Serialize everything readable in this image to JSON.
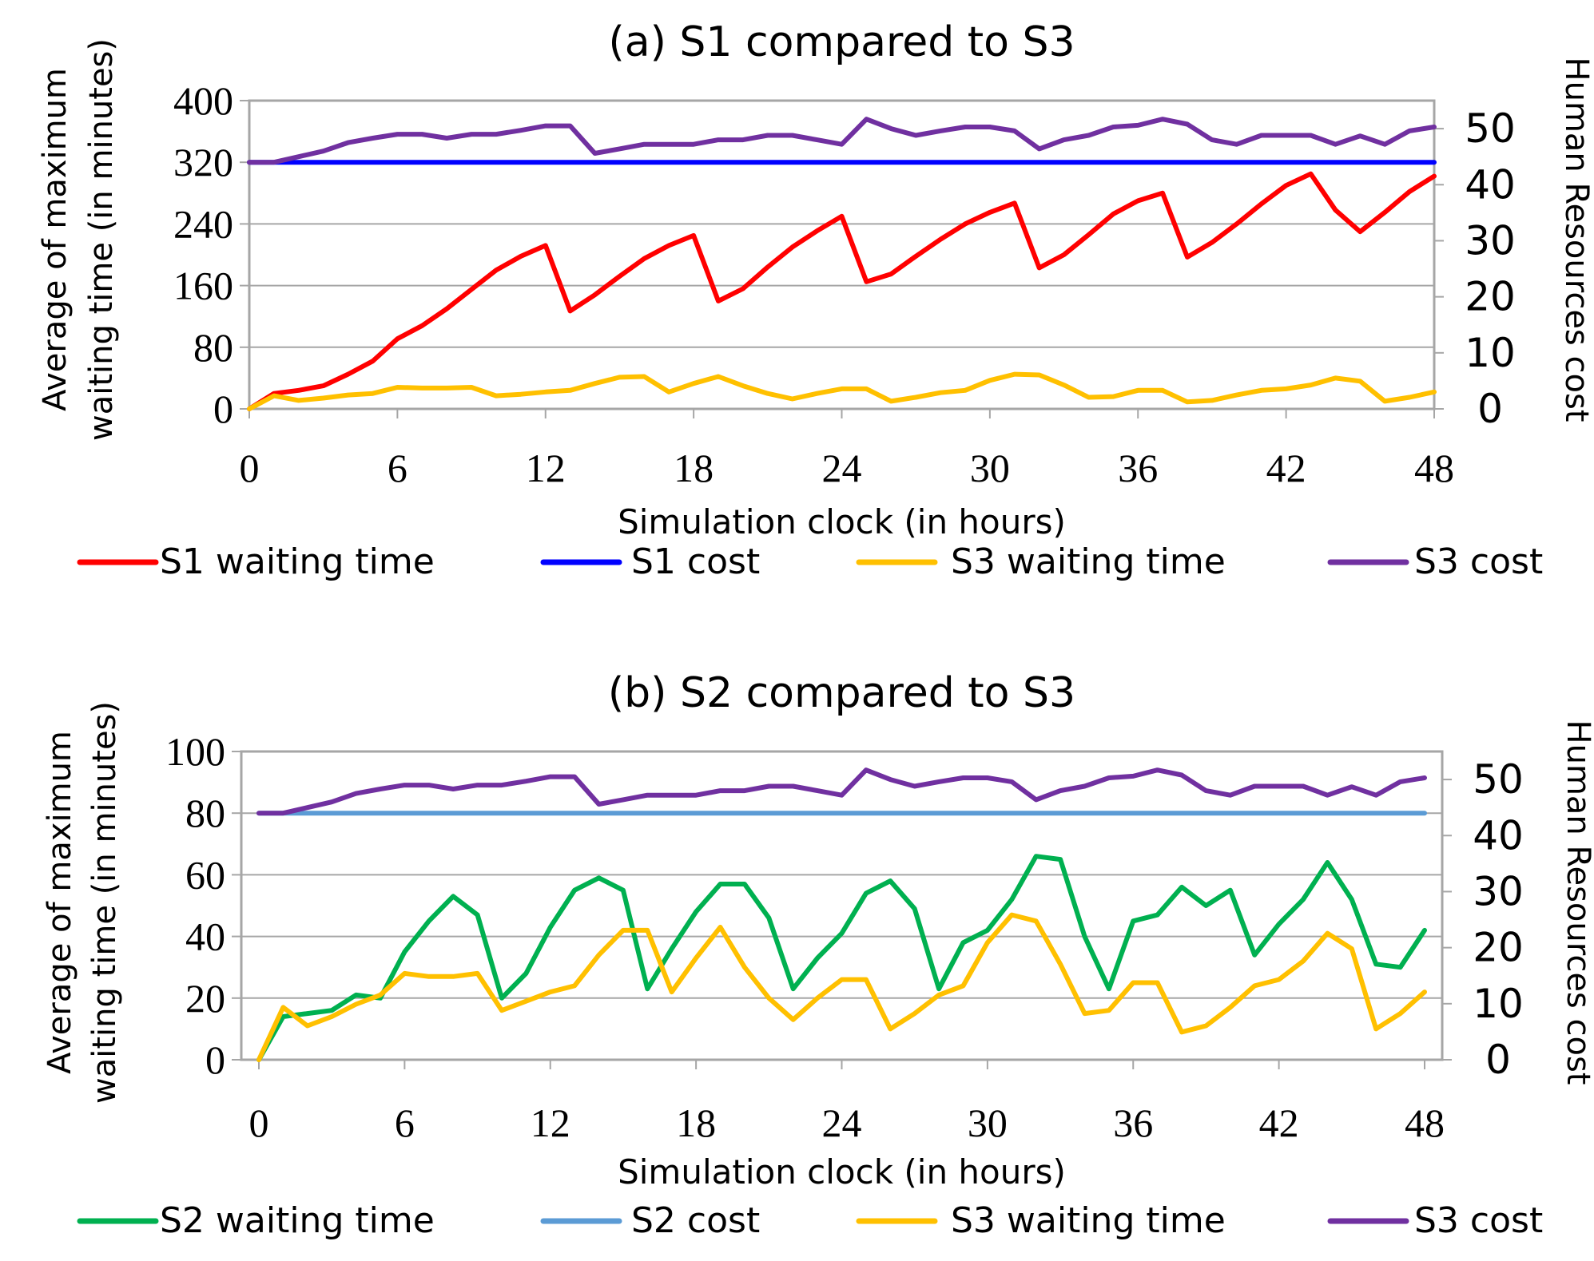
{
  "chart_data": [
    {
      "type": "line",
      "title": "(a) S1 compared to S3",
      "xlabel": "Simulation clock (in hours)",
      "ylabel_lines": [
        "Average of maximum",
        "waiting time (in minutes)"
      ],
      "y2label": "Human Resources cost",
      "xlim": [
        0,
        48
      ],
      "ylim": [
        0,
        400
      ],
      "y2lim": [
        0,
        55
      ],
      "x_ticks": [
        "0",
        "6",
        "12",
        "18",
        "24",
        "30",
        "36",
        "42",
        "48"
      ],
      "y_ticks": [
        "0",
        "80",
        "160",
        "240",
        "320",
        "400"
      ],
      "y2_ticks": [
        "0",
        "10",
        "20",
        "30",
        "40",
        "50"
      ],
      "x": [
        0,
        1,
        2,
        3,
        4,
        5,
        6,
        7,
        8,
        9,
        10,
        11,
        12,
        13,
        14,
        15,
        16,
        17,
        18,
        19,
        20,
        21,
        22,
        23,
        24,
        25,
        26,
        27,
        28,
        29,
        30,
        31,
        32,
        33,
        34,
        35,
        36,
        37,
        38,
        39,
        40,
        41,
        42,
        43,
        44,
        45,
        46,
        47,
        48
      ],
      "series": [
        {
          "name": "S1 waiting time",
          "axis": "left",
          "color": "#ff0000",
          "values": [
            0,
            20,
            24,
            30,
            45,
            62,
            91,
            108,
            130,
            155,
            180,
            198,
            212,
            127,
            148,
            172,
            195,
            212,
            225,
            140,
            156,
            184,
            210,
            231,
            250,
            165,
            175,
            198,
            220,
            240,
            255,
            267,
            183,
            200,
            226,
            253,
            270,
            280,
            197,
            216,
            240,
            266,
            290,
            305,
            258,
            230,
            255,
            282,
            302
          ]
        },
        {
          "name": "S1 cost",
          "axis": "right",
          "color": "#0000ff",
          "values": [
            44,
            44,
            44,
            44,
            44,
            44,
            44,
            44,
            44,
            44,
            44,
            44,
            44,
            44,
            44,
            44,
            44,
            44,
            44,
            44,
            44,
            44,
            44,
            44,
            44,
            44,
            44,
            44,
            44,
            44,
            44,
            44,
            44,
            44,
            44,
            44,
            44,
            44,
            44,
            44,
            44,
            44,
            44,
            44,
            44,
            44,
            44,
            44,
            44
          ]
        },
        {
          "name": "S3 waiting time",
          "axis": "left",
          "color": "#ffc000",
          "values": [
            0,
            17,
            11,
            14,
            18,
            20,
            28,
            27,
            27,
            28,
            17,
            19,
            22,
            24,
            33,
            41,
            42,
            22,
            33,
            42,
            30,
            20,
            13,
            20,
            26,
            26,
            10,
            15,
            21,
            24,
            37,
            45,
            44,
            31,
            15,
            16,
            24,
            24,
            9,
            11,
            18,
            24,
            26,
            31,
            40,
            36,
            10,
            15,
            22
          ]
        },
        {
          "name": "S3 cost",
          "axis": "right",
          "color": "#7030a0",
          "values": [
            44,
            44,
            45,
            46,
            47.5,
            48.3,
            49,
            49,
            48.3,
            49,
            49,
            49.7,
            50.5,
            50.5,
            45.6,
            46.4,
            47.2,
            47.2,
            47.2,
            48,
            48,
            48.8,
            48.8,
            48,
            47.2,
            51.7,
            50,
            48.8,
            49.6,
            50.3,
            50.3,
            49.6,
            46.4,
            48,
            48.8,
            50.3,
            50.6,
            51.7,
            50.8,
            48,
            47.2,
            48.8,
            48.8,
            48.8,
            47.2,
            48.7,
            47.2,
            49.6,
            50.3
          ]
        }
      ]
    },
    {
      "type": "line",
      "title": "(b) S2 compared to S3",
      "xlabel": "Simulation clock (in hours)",
      "ylabel_lines": [
        "Average of maximum",
        "waiting time (in minutes)"
      ],
      "y2label": "Human Resources cost",
      "xlim": [
        0,
        48
      ],
      "ylim": [
        0,
        100
      ],
      "y2lim": [
        0,
        55
      ],
      "x_ticks": [
        "0",
        "6",
        "12",
        "18",
        "24",
        "30",
        "36",
        "42",
        "48"
      ],
      "y_ticks": [
        "0",
        "20",
        "40",
        "60",
        "80",
        "100"
      ],
      "y2_ticks": [
        "0",
        "10",
        "20",
        "30",
        "40",
        "50"
      ],
      "x": [
        0,
        1,
        2,
        3,
        4,
        5,
        6,
        7,
        8,
        9,
        10,
        11,
        12,
        13,
        14,
        15,
        16,
        17,
        18,
        19,
        20,
        21,
        22,
        23,
        24,
        25,
        26,
        27,
        28,
        29,
        30,
        31,
        32,
        33,
        34,
        35,
        36,
        37,
        38,
        39,
        40,
        41,
        42,
        43,
        44,
        45,
        46,
        47,
        48
      ],
      "series": [
        {
          "name": "S2 waiting time",
          "axis": "left",
          "color": "#00b050",
          "values": [
            0,
            14,
            15,
            16,
            21,
            20,
            35,
            45,
            53,
            47,
            20,
            28,
            43,
            55,
            59,
            55,
            23,
            36,
            48,
            57,
            57,
            46,
            23,
            33,
            41,
            54,
            58,
            49,
            23,
            38,
            42,
            52,
            66,
            65,
            40,
            23,
            45,
            47,
            56,
            50,
            55,
            34,
            44,
            52,
            64,
            52,
            31,
            30,
            42
          ]
        },
        {
          "name": "S2 cost",
          "axis": "right",
          "color": "#5b9bd5",
          "values": [
            44,
            44,
            44,
            44,
            44,
            44,
            44,
            44,
            44,
            44,
            44,
            44,
            44,
            44,
            44,
            44,
            44,
            44,
            44,
            44,
            44,
            44,
            44,
            44,
            44,
            44,
            44,
            44,
            44,
            44,
            44,
            44,
            44,
            44,
            44,
            44,
            44,
            44,
            44,
            44,
            44,
            44,
            44,
            44,
            44,
            44,
            44,
            44,
            44
          ]
        },
        {
          "name": "S3 waiting time",
          "axis": "left",
          "color": "#ffc000",
          "values": [
            0,
            17,
            11,
            14,
            18,
            21,
            28,
            27,
            27,
            28,
            16,
            19,
            22,
            24,
            34,
            42,
            42,
            22,
            33,
            43,
            30,
            20,
            13,
            20,
            26,
            26,
            10,
            15,
            21,
            24,
            38,
            47,
            45,
            31,
            15,
            16,
            25,
            25,
            9,
            11,
            17,
            24,
            26,
            32,
            41,
            36,
            10,
            15,
            22
          ]
        },
        {
          "name": "S3 cost",
          "axis": "right",
          "color": "#7030a0",
          "values": [
            44,
            44,
            45,
            46,
            47.5,
            48.3,
            49,
            49,
            48.3,
            49,
            49,
            49.7,
            50.5,
            50.5,
            45.6,
            46.4,
            47.2,
            47.2,
            47.2,
            48,
            48,
            48.8,
            48.8,
            48,
            47.2,
            51.7,
            50,
            48.8,
            49.6,
            50.3,
            50.3,
            49.6,
            46.4,
            48,
            48.8,
            50.3,
            50.6,
            51.7,
            50.8,
            48,
            47.2,
            48.8,
            48.8,
            48.8,
            47.2,
            48.7,
            47.2,
            49.6,
            50.3
          ]
        }
      ]
    }
  ]
}
